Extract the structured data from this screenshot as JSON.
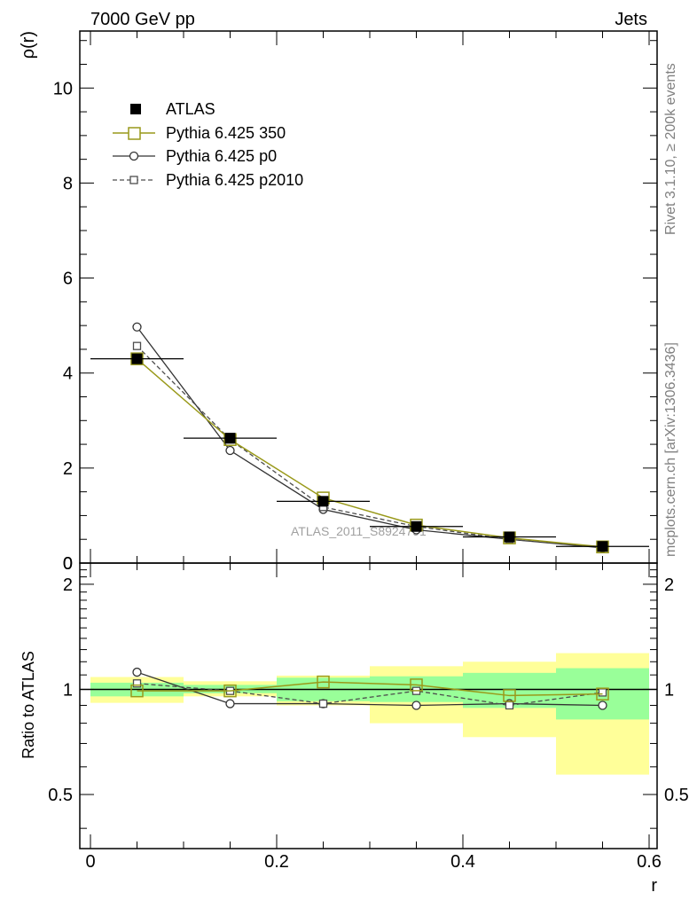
{
  "header": {
    "left": "7000 GeV pp",
    "right": "Jets"
  },
  "side_labels": {
    "top": "Rivet 3.1.10, ≥ 200k events",
    "bottom": "mcplots.cern.ch [arXiv:1306.3436]"
  },
  "watermark": "ATLAS_2011_S8924791",
  "colors": {
    "atlas": "#000000",
    "py350": "#99991a",
    "py_p0": "#333333",
    "py_p2010": "#4d4d4d",
    "band_inner": "#99ff99",
    "band_outer": "#ffff99"
  },
  "legend": {
    "items": [
      {
        "id": "atlas",
        "label": "ATLAS"
      },
      {
        "id": "py350",
        "label": "Pythia 6.425 350"
      },
      {
        "id": "py_p0",
        "label": "Pythia 6.425 p0"
      },
      {
        "id": "py_p2010",
        "label": "Pythia 6.425 p2010"
      }
    ]
  },
  "chart_data": [
    {
      "type": "line",
      "panel": "main",
      "ylabel": "ρ(r)",
      "xlim": [
        -0.01,
        0.61
      ],
      "ylim": [
        0,
        11.2
      ],
      "yticks": [
        0,
        2,
        4,
        6,
        8,
        10
      ],
      "x": [
        0.05,
        0.15,
        0.25,
        0.35,
        0.45,
        0.55
      ],
      "xerr": 0.05,
      "series": [
        {
          "name": "ATLAS",
          "id": "atlas",
          "values": [
            4.3,
            2.63,
            1.3,
            0.77,
            0.55,
            0.35
          ]
        },
        {
          "name": "Pythia 6.425 350",
          "id": "py350",
          "values": [
            4.3,
            2.6,
            1.37,
            0.8,
            0.53,
            0.34
          ]
        },
        {
          "name": "Pythia 6.425 p0",
          "id": "py_p0",
          "values": [
            4.97,
            2.37,
            1.13,
            0.7,
            0.5,
            0.32
          ]
        },
        {
          "name": "Pythia 6.425 p2010",
          "id": "py_p2010",
          "values": [
            4.57,
            2.6,
            1.18,
            0.77,
            0.5,
            0.34
          ]
        }
      ]
    },
    {
      "type": "line",
      "panel": "ratio",
      "ylabel": "Ratio to ATLAS",
      "xlabel": "r",
      "xlim": [
        -0.01,
        0.61
      ],
      "ylim": [
        0.35,
        2.3
      ],
      "yticks": [
        0.5,
        1,
        2
      ],
      "xticks": [
        0,
        0.2,
        0.4,
        0.6
      ],
      "x": [
        0.05,
        0.15,
        0.25,
        0.35,
        0.45,
        0.55
      ],
      "bands": {
        "inner": [
          [
            0.955,
            1.045
          ],
          [
            0.975,
            1.03
          ],
          [
            0.925,
            1.08
          ],
          [
            0.92,
            1.09
          ],
          [
            0.885,
            1.115
          ],
          [
            0.82,
            1.15
          ]
        ],
        "outer": [
          [
            0.915,
            1.085
          ],
          [
            0.955,
            1.055
          ],
          [
            0.9,
            1.095
          ],
          [
            0.8,
            1.165
          ],
          [
            0.73,
            1.2
          ],
          [
            0.57,
            1.27
          ]
        ]
      },
      "series": [
        {
          "name": "Pythia 6.425 350",
          "id": "py350",
          "values": [
            0.99,
            0.99,
            1.05,
            1.03,
            0.96,
            0.97
          ]
        },
        {
          "name": "Pythia 6.425 p0",
          "id": "py_p0",
          "values": [
            1.12,
            0.91,
            0.91,
            0.9,
            0.91,
            0.9
          ]
        },
        {
          "name": "Pythia 6.425 p2010",
          "id": "py_p2010",
          "values": [
            1.04,
            0.99,
            0.91,
            0.99,
            0.9,
            0.98
          ]
        }
      ]
    }
  ]
}
